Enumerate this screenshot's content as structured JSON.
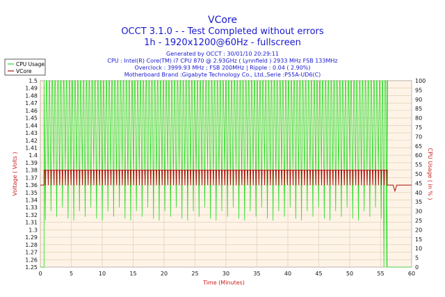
{
  "chart_data": {
    "type": "line",
    "title": "VCore",
    "subtitle_lines": [
      "OCCT 3.1.0 -  - Test Completed without errors",
      "1h - 1920x1200@60Hz - fullscreen"
    ],
    "info_lines": [
      "Generated by OCCT : 30/01/10 20:29:11",
      "CPU : Intel(R) Core(TM) i7 CPU 870 @ 2.93GHz ( Lynnfield ) 2933 MHz FSB 133MHz",
      "Overclock : 3999.93 MHz ; FSB 200MHz | Ripple : 0.04 ( 2.90%)",
      "Motherboard Brand :Gigabyte Technology Co., Ltd.,Serie :P55A-UD6(C)"
    ],
    "xlabel": "Time (Minutes)",
    "ylabel_left": "Voltage ( Volts )",
    "ylabel_right": "CPU Usage ( in % )",
    "xlim": [
      0,
      60
    ],
    "ylim_left": [
      1.25,
      1.5
    ],
    "ylim_right": [
      0,
      100
    ],
    "x_ticks": [
      "0",
      "5",
      "10",
      "15",
      "20",
      "25",
      "30",
      "35",
      "40",
      "45",
      "50",
      "55",
      "60"
    ],
    "y_left_ticks": [
      "1.5",
      "1.49",
      "1.48",
      "1.47",
      "1.46",
      "1.45",
      "1.44",
      "1.43",
      "1.42",
      "1.41",
      "1.4",
      "1.39",
      "1.38",
      "1.37",
      "1.36",
      "1.35",
      "1.34",
      "1.33",
      "1.32",
      "1.31",
      "1.3",
      "1.29",
      "1.28",
      "1.27",
      "1.26",
      "1.25"
    ],
    "y_right_ticks": [
      "100",
      "95",
      "90",
      "85",
      "80",
      "75",
      "70",
      "65",
      "60",
      "55",
      "50",
      "45",
      "40",
      "35",
      "30",
      "25",
      "20",
      "15",
      "10",
      "5",
      "0"
    ],
    "grid": true,
    "legend_position": "top-left",
    "series": [
      {
        "name": "CPU Usage",
        "axis": "right",
        "color": "#22dd22",
        "pattern": {
          "x_start": 0.6,
          "x_end": 56.0,
          "period": 0.46,
          "high": 100,
          "dips": [
            25,
            48,
            30,
            50,
            27,
            45,
            32,
            52,
            26,
            47
          ],
          "dip_to_zero_at": 55.5,
          "after_end": 0
        }
      },
      {
        "name": "VCore",
        "axis": "left",
        "color": "#aa1111",
        "pattern": {
          "pre_value": 1.36,
          "x_start": 0.6,
          "x_end": 56.0,
          "period": 0.46,
          "high": 1.38,
          "low": 1.36,
          "after_value": 1.36,
          "drop_x": 57.3,
          "drop_value": 1.352
        }
      }
    ],
    "colors": {
      "title": "#1818d0",
      "axis_text": "#c8201c",
      "plot_bg": "#fdf3e6",
      "grid": "#e0c8b0"
    }
  }
}
